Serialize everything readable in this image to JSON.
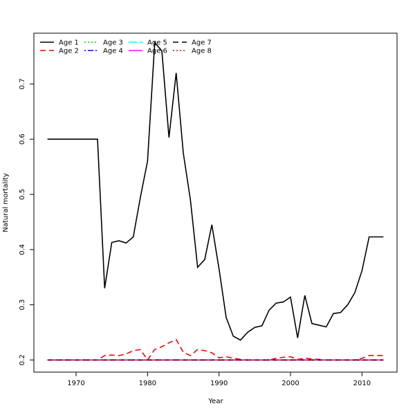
{
  "chart_data": {
    "type": "line",
    "title": "",
    "xlabel": "Year",
    "ylabel": "Natural mortality",
    "xlim": [
      1964.1,
      2014.9
    ],
    "ylim": [
      0.178,
      0.792
    ],
    "xticks": [
      1970,
      1980,
      1990,
      2000,
      2010
    ],
    "yticks": [
      0.2,
      0.3,
      0.4,
      0.5,
      0.6,
      0.7
    ],
    "legend_position": "top-left",
    "grid": false,
    "x": [
      1966,
      1967,
      1968,
      1969,
      1970,
      1971,
      1972,
      1973,
      1974,
      1975,
      1976,
      1977,
      1978,
      1979,
      1980,
      1981,
      1982,
      1983,
      1984,
      1985,
      1986,
      1987,
      1988,
      1989,
      1990,
      1991,
      1992,
      1993,
      1994,
      1995,
      1996,
      1997,
      1998,
      1999,
      2000,
      2001,
      2002,
      2003,
      2004,
      2005,
      2006,
      2007,
      2008,
      2009,
      2010,
      2011,
      2012,
      2013
    ],
    "series": [
      {
        "name": "Age 1",
        "color": "#000000",
        "dash": "solid",
        "values": [
          0.6,
          0.6,
          0.6,
          0.6,
          0.6,
          0.6,
          0.6,
          0.6,
          0.33,
          0.413,
          0.416,
          0.412,
          0.423,
          0.495,
          0.56,
          0.775,
          0.76,
          0.603,
          0.72,
          0.575,
          0.49,
          0.368,
          0.382,
          0.445,
          0.365,
          0.277,
          0.243,
          0.236,
          0.25,
          0.259,
          0.262,
          0.29,
          0.303,
          0.305,
          0.314,
          0.24,
          0.317,
          0.266,
          0.263,
          0.26,
          0.284,
          0.286,
          0.3,
          0.322,
          0.362,
          0.423,
          0.423,
          0.423
        ]
      },
      {
        "name": "Age 2",
        "color": "#ff0000",
        "dash": "dashed",
        "values": [
          0.2,
          0.2,
          0.2,
          0.2,
          0.2,
          0.2,
          0.2,
          0.2,
          0.208,
          0.209,
          0.208,
          0.211,
          0.217,
          0.219,
          0.2,
          0.219,
          0.224,
          0.231,
          0.237,
          0.214,
          0.208,
          0.219,
          0.217,
          0.213,
          0.204,
          0.206,
          0.203,
          0.201,
          0.2,
          0.2,
          0.2,
          0.2,
          0.203,
          0.205,
          0.206,
          0.201,
          0.203,
          0.202,
          0.201,
          0.2,
          0.2,
          0.2,
          0.2,
          0.2,
          0.203,
          0.208,
          0.208,
          0.208
        ]
      },
      {
        "name": "Age 3",
        "color": "#00cd00",
        "dash": "dotted",
        "values": [
          0.2,
          0.2,
          0.2,
          0.2,
          0.2,
          0.2,
          0.2,
          0.2,
          0.2,
          0.2,
          0.2,
          0.2,
          0.2,
          0.2,
          0.2,
          0.2,
          0.2,
          0.2,
          0.2,
          0.2,
          0.2,
          0.2,
          0.2,
          0.2,
          0.2,
          0.2,
          0.2,
          0.2,
          0.2,
          0.2,
          0.2,
          0.2,
          0.2,
          0.2,
          0.2,
          0.2,
          0.2,
          0.2,
          0.2,
          0.2,
          0.2,
          0.2,
          0.2,
          0.2,
          0.2,
          0.2,
          0.2,
          0.2
        ]
      },
      {
        "name": "Age 4",
        "color": "#0000ff",
        "dash": "dotdash",
        "values": [
          0.2,
          0.2,
          0.2,
          0.2,
          0.2,
          0.2,
          0.2,
          0.2,
          0.2,
          0.2,
          0.2,
          0.2,
          0.2,
          0.2,
          0.2,
          0.2,
          0.2,
          0.2,
          0.2,
          0.2,
          0.2,
          0.2,
          0.2,
          0.2,
          0.2,
          0.2,
          0.2,
          0.2,
          0.2,
          0.2,
          0.2,
          0.2,
          0.2,
          0.2,
          0.2,
          0.2,
          0.2,
          0.2,
          0.2,
          0.2,
          0.2,
          0.2,
          0.2,
          0.2,
          0.2,
          0.2,
          0.2,
          0.2
        ]
      },
      {
        "name": "Age 5",
        "color": "#00ffff",
        "dash": "longdash",
        "values": [
          0.2,
          0.2,
          0.2,
          0.2,
          0.2,
          0.2,
          0.2,
          0.2,
          0.2,
          0.2,
          0.2,
          0.2,
          0.2,
          0.2,
          0.2,
          0.2,
          0.2,
          0.2,
          0.2,
          0.2,
          0.2,
          0.2,
          0.2,
          0.2,
          0.2,
          0.2,
          0.2,
          0.2,
          0.2,
          0.2,
          0.2,
          0.2,
          0.2,
          0.2,
          0.2,
          0.2,
          0.2,
          0.2,
          0.2,
          0.2,
          0.2,
          0.2,
          0.2,
          0.2,
          0.2,
          0.2,
          0.2,
          0.2
        ]
      },
      {
        "name": "Age 6",
        "color": "#ff00ff",
        "dash": "solid",
        "values": [
          0.2,
          0.2,
          0.2,
          0.2,
          0.2,
          0.2,
          0.2,
          0.2,
          0.2,
          0.2,
          0.2,
          0.2,
          0.2,
          0.2,
          0.2,
          0.2,
          0.2,
          0.2,
          0.2,
          0.2,
          0.2,
          0.2,
          0.2,
          0.2,
          0.2,
          0.2,
          0.2,
          0.2,
          0.2,
          0.2,
          0.2,
          0.2,
          0.2,
          0.2,
          0.2,
          0.2,
          0.2,
          0.2,
          0.2,
          0.2,
          0.2,
          0.2,
          0.2,
          0.2,
          0.2,
          0.2,
          0.2,
          0.2
        ]
      },
      {
        "name": "Age 7",
        "color": "#000000",
        "dash": "dashed",
        "values": [
          0.2,
          0.2,
          0.2,
          0.2,
          0.2,
          0.2,
          0.2,
          0.2,
          0.2,
          0.2,
          0.2,
          0.2,
          0.2,
          0.2,
          0.2,
          0.2,
          0.2,
          0.2,
          0.2,
          0.2,
          0.2,
          0.2,
          0.2,
          0.2,
          0.2,
          0.2,
          0.2,
          0.2,
          0.2,
          0.2,
          0.2,
          0.2,
          0.2,
          0.2,
          0.2,
          0.2,
          0.2,
          0.2,
          0.2,
          0.2,
          0.2,
          0.2,
          0.2,
          0.2,
          0.2,
          0.2,
          0.2,
          0.2
        ]
      },
      {
        "name": "Age 8",
        "color": "#ff0000",
        "dash": "dotted",
        "values": [
          0.2,
          0.2,
          0.2,
          0.2,
          0.2,
          0.2,
          0.2,
          0.2,
          0.2,
          0.2,
          0.2,
          0.2,
          0.2,
          0.2,
          0.2,
          0.2,
          0.2,
          0.2,
          0.2,
          0.2,
          0.2,
          0.2,
          0.2,
          0.2,
          0.2,
          0.2,
          0.2,
          0.2,
          0.2,
          0.2,
          0.2,
          0.2,
          0.2,
          0.2,
          0.2,
          0.2,
          0.2,
          0.2,
          0.2,
          0.2,
          0.2,
          0.2,
          0.2,
          0.2,
          0.2,
          0.2,
          0.2,
          0.2
        ]
      }
    ]
  }
}
